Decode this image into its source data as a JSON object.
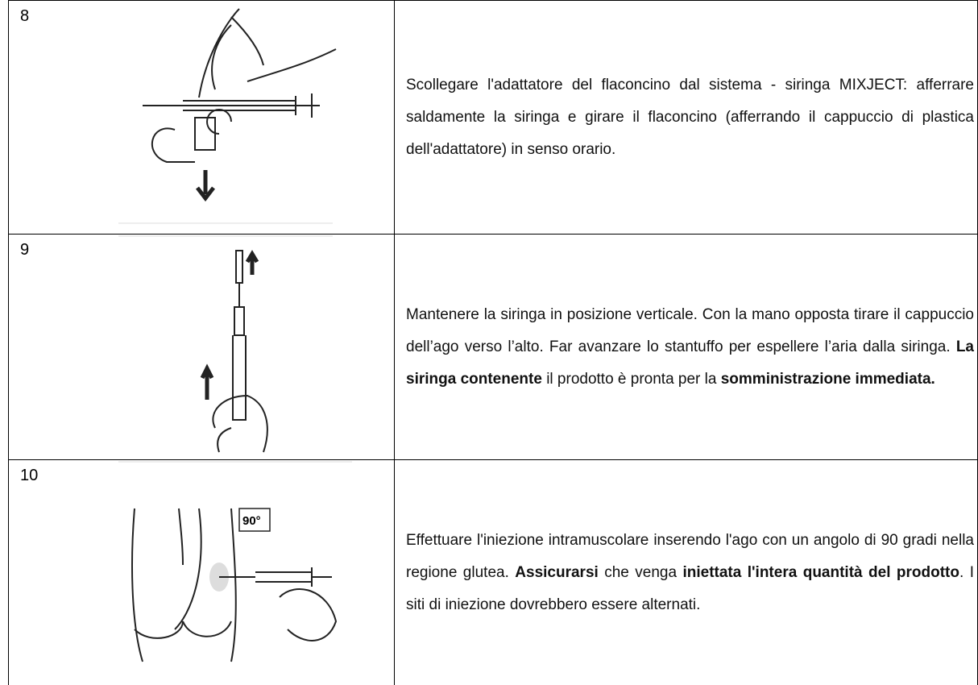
{
  "table": {
    "rows": [
      {
        "step": "8",
        "text": [
          {
            "text": "Scollegare l'adattatore del flaconcino dal sistema - siringa MIXJECT: afferrare saldamente la siringa e girare il flaconcino (afferrando il cappuccio di plastica dell'adattatore) in senso orario.",
            "bold": false
          }
        ]
      },
      {
        "step": "9",
        "text": [
          {
            "text": "Mantenere la siringa in posizione verticale. Con la mano opposta tirare il cappuccio dell’ago verso l’alto. Far avanzare lo stantuffo per espellere l’aria dalla siringa. ",
            "bold": false
          },
          {
            "text": "La siringa contenente",
            "bold": true
          },
          {
            "text": " il prodotto è pronta per la ",
            "bold": false
          },
          {
            "text": "somministrazione immediata.",
            "bold": true
          }
        ]
      },
      {
        "step": "10",
        "image_label": "90°",
        "text": [
          {
            "text": "Effettuare l'iniezione intramuscolare inserendo l'ago con un angolo di 90 gradi nella regione  glutea. ",
            "bold": false
          },
          {
            "text": "Assicurarsi",
            "bold": true
          },
          {
            "text": " che venga ",
            "bold": false
          },
          {
            "text": "iniettata l'intera quantità del prodotto",
            "bold": true
          },
          {
            "text": ". I siti di iniezione dovrebbero essere alternati.",
            "bold": false
          }
        ]
      }
    ]
  }
}
